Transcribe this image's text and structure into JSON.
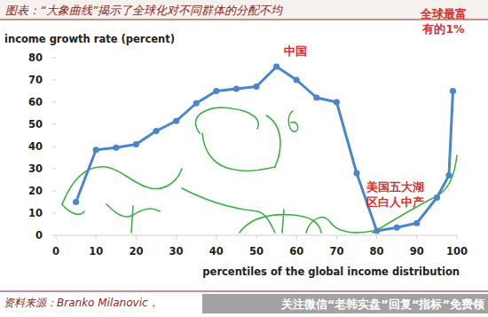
{
  "title": "图表：“大象曲线”揭示了全球化对不同群体的分配不均",
  "source": "资料来源：Branko Milanovic，",
  "watermark": "关注微信“老韩实盘”回复“指标”免费领",
  "chart_data": {
    "type": "line",
    "y_label": "income growth rate (percent)",
    "x_label": "percentiles of the global income distribution",
    "x": [
      5,
      10,
      15,
      20,
      25,
      30,
      35,
      40,
      45,
      50,
      55,
      60,
      65,
      70,
      75,
      80,
      85,
      90,
      95,
      98,
      99
    ],
    "values": [
      15,
      38.5,
      39.5,
      41,
      47,
      51.5,
      59.5,
      65,
      66,
      67,
      76,
      70,
      62,
      60,
      28,
      2,
      3.5,
      5.5,
      17,
      27,
      65
    ],
    "color": "#4a86c8",
    "marker": "circle",
    "xlim": [
      0,
      100
    ],
    "xticks": [
      0,
      10,
      20,
      30,
      40,
      50,
      60,
      70,
      80,
      90,
      100
    ],
    "ylim": [
      0,
      80
    ],
    "yticks": [
      0,
      10,
      20,
      30,
      40,
      50,
      60,
      70,
      80
    ],
    "grid": false,
    "annotations": [
      [
        "中国"
      ],
      [
        "美国五大湖",
        "区白人中产"
      ],
      [
        "全球最富",
        "有的1%"
      ]
    ]
  }
}
